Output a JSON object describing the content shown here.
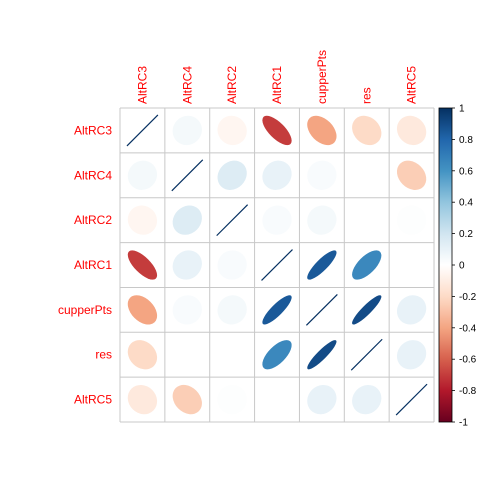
{
  "chart_data": {
    "type": "heatmap",
    "method": "ellipse",
    "layout": "full",
    "variables": [
      "AltRC3",
      "AltRC4",
      "AltRC2",
      "AltRC1",
      "cupperPts",
      "res",
      "AltRC5"
    ],
    "matrix": [
      [
        1.0,
        0.05,
        -0.05,
        -0.7,
        -0.4,
        -0.2,
        -0.12
      ],
      [
        0.05,
        1.0,
        0.15,
        0.1,
        0.03,
        0.0,
        -0.25
      ],
      [
        -0.05,
        0.15,
        1.0,
        0.03,
        0.05,
        0.0,
        0.01
      ],
      [
        -0.7,
        0.1,
        0.03,
        1.0,
        0.85,
        0.65,
        0.0
      ],
      [
        -0.4,
        0.03,
        0.05,
        0.85,
        1.0,
        0.9,
        0.1
      ],
      [
        -0.2,
        0.0,
        0.0,
        0.65,
        0.9,
        1.0,
        0.1
      ],
      [
        -0.12,
        -0.25,
        0.01,
        0.0,
        0.1,
        0.1,
        1.0
      ]
    ],
    "colorbar": {
      "ticks": [
        1,
        0.8,
        0.6,
        0.4,
        0.2,
        0,
        -0.2,
        -0.4,
        -0.6,
        -0.8,
        -1
      ],
      "tick_labels": [
        "1",
        "0.8",
        "0.6",
        "0.4",
        "0.2",
        "0",
        "-0.2",
        "-0.4",
        "-0.6",
        "-0.8",
        "-1"
      ],
      "range": [
        -1,
        1
      ]
    },
    "label_color": "#FF0000",
    "grid": true,
    "palette": [
      "#67001F",
      "#B2182B",
      "#D6604D",
      "#F4A582",
      "#FDDBC7",
      "#FFFFFF",
      "#D1E5F0",
      "#92C5DE",
      "#4393C3",
      "#2166AC",
      "#053061"
    ]
  }
}
